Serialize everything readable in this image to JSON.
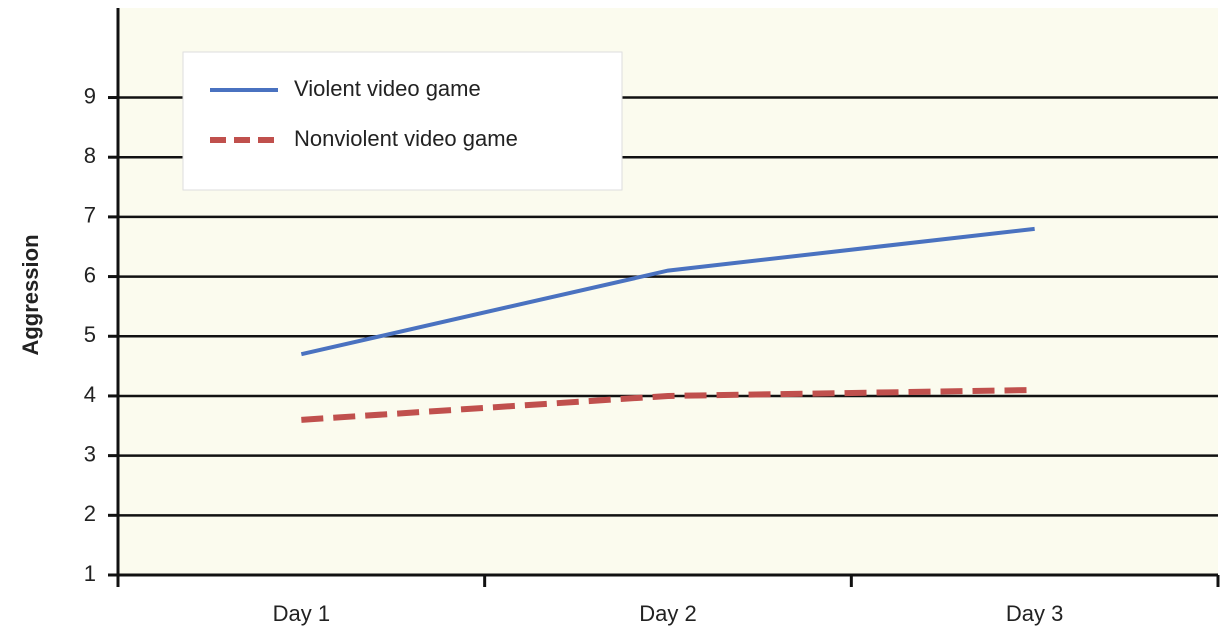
{
  "chart_data": {
    "type": "line",
    "y_label": "Aggression",
    "categories": [
      "Day 1",
      "Day 2",
      "Day 3"
    ],
    "series": [
      {
        "name": "Violent video game",
        "color": "#4a72c0",
        "dash": false,
        "values": [
          4.7,
          6.1,
          6.8
        ]
      },
      {
        "name": "Nonviolent video game",
        "color": "#c0504d",
        "dash": true,
        "values": [
          3.6,
          4.0,
          4.1
        ]
      }
    ],
    "ylim": [
      1,
      10.5
    ],
    "yticks": [
      1,
      2,
      3,
      4,
      5,
      6,
      7,
      8,
      9
    ],
    "grid": true,
    "legend": "upper left"
  }
}
